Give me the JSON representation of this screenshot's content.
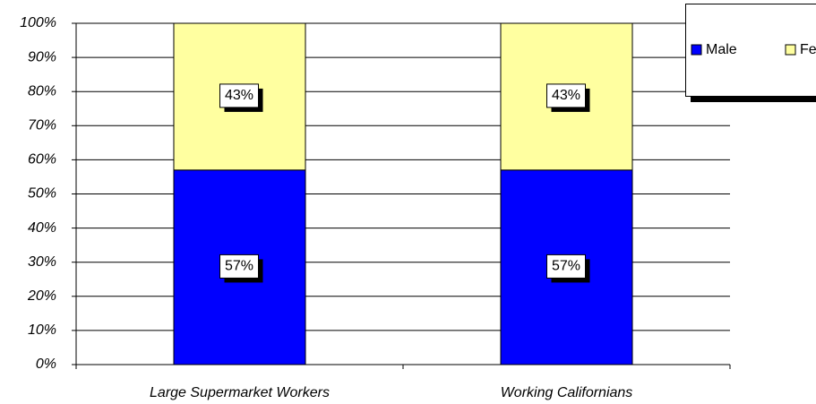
{
  "chart_data": {
    "type": "stacked_bar",
    "categories": [
      "Large Supermarket Workers",
      "Working Californians"
    ],
    "series": [
      {
        "name": "Male",
        "color": "#0000ff",
        "values": [
          57,
          57
        ],
        "value_labels": [
          "57%",
          "57%"
        ]
      },
      {
        "name": "Female",
        "color": "#ffffa0",
        "values": [
          43,
          43
        ],
        "value_labels": [
          "43%",
          "43%"
        ]
      }
    ],
    "ylim": [
      0,
      100
    ],
    "yticks": [
      {
        "value": 0,
        "label": "0%"
      },
      {
        "value": 10,
        "label": "10%"
      },
      {
        "value": 20,
        "label": "20%"
      },
      {
        "value": 30,
        "label": "30%"
      },
      {
        "value": 40,
        "label": "40%"
      },
      {
        "value": 50,
        "label": "50%"
      },
      {
        "value": 60,
        "label": "60%"
      },
      {
        "value": 70,
        "label": "70%"
      },
      {
        "value": 80,
        "label": "80%"
      },
      {
        "value": 90,
        "label": "90%"
      },
      {
        "value": 100,
        "label": "100%"
      }
    ],
    "grid": true,
    "legend": "top-right"
  }
}
